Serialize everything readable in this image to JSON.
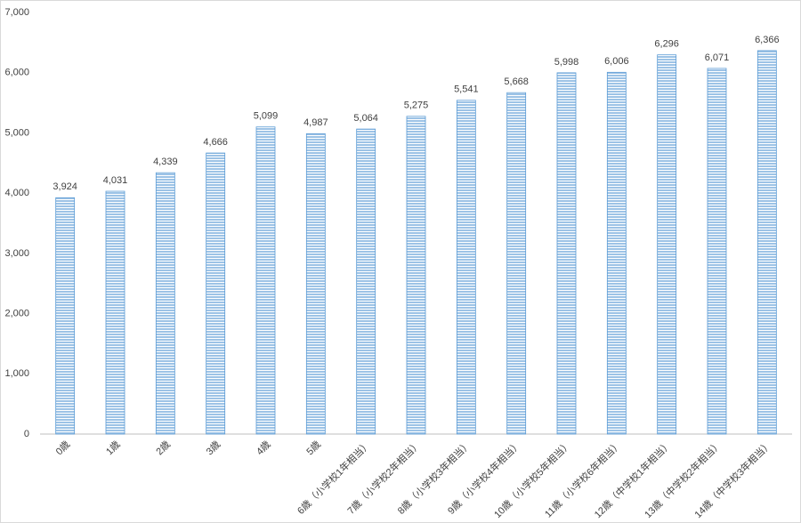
{
  "chart_data": {
    "type": "bar",
    "categories": [
      "0歳",
      "1歳",
      "2歳",
      "3歳",
      "4歳",
      "5歳",
      "6歳（小学校1年相当）",
      "7歳（小学校2年相当）",
      "8歳（小学校3年相当）",
      "9歳（小学校4年相当）",
      "10歳（小学校5年相当）",
      "11歳（小学校6年相当）",
      "12歳（中学校1年相当）",
      "13歳（中学校2年相当）",
      "14歳（中学校3年相当）"
    ],
    "values": [
      3924,
      4031,
      4339,
      4666,
      5099,
      4987,
      5064,
      5275,
      5541,
      5668,
      5998,
      6006,
      6296,
      6071,
      6366
    ],
    "value_labels": [
      "3,924",
      "4,031",
      "4,339",
      "4,666",
      "5,099",
      "4,987",
      "5,064",
      "5,275",
      "5,541",
      "5,668",
      "5,998",
      "6,006",
      "6,296",
      "6,071",
      "6,366"
    ],
    "color": "#9dc3e6",
    "ylim": [
      0,
      7000
    ],
    "yticks": [
      0,
      {
        "value": 1000,
        "label": "1,000"
      },
      {
        "value": 2000,
        "label": "2,000"
      },
      {
        "value": 3000,
        "label": "3,000"
      },
      {
        "value": 4000,
        "label": "4,000"
      },
      {
        "value": 5000,
        "label": "5,000"
      },
      {
        "value": 6000,
        "label": "6,000"
      },
      {
        "value": 7000,
        "label": "7,000"
      }
    ],
    "grid": false
  }
}
